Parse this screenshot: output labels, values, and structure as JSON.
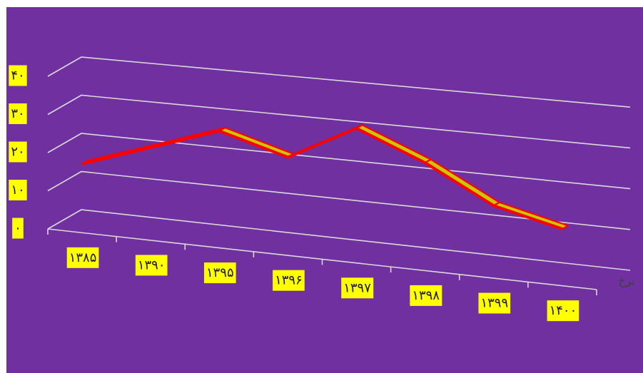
{
  "chart_data": {
    "type": "line",
    "title": "",
    "xlabel": "",
    "ylabel": "نرخ",
    "categories": [
      "۱۳۸۵",
      "۱۳۹۰",
      "۱۳۹۵",
      "۱۳۹۶",
      "۱۳۹۷",
      "۱۳۹۸",
      "۱۳۹۹",
      "۱۴۰۰"
    ],
    "y_ticks": [
      "۰",
      "۱۰",
      "۲۰",
      "۳۰",
      "۴۰"
    ],
    "series": [
      {
        "values": [
          18,
          24,
          30,
          25,
          34,
          27,
          18,
          14
        ]
      }
    ],
    "ylim": [
      0,
      40
    ],
    "grid": true,
    "legend": "none",
    "colors": {
      "background": "#7030A0",
      "border": "#ffffff",
      "gridline": "#d9d9d9",
      "label_box": "#ffff00",
      "ribbon_fill": "#c8c800",
      "ribbon_stroke": "#ff0000",
      "axis_title": "#404040"
    }
  }
}
